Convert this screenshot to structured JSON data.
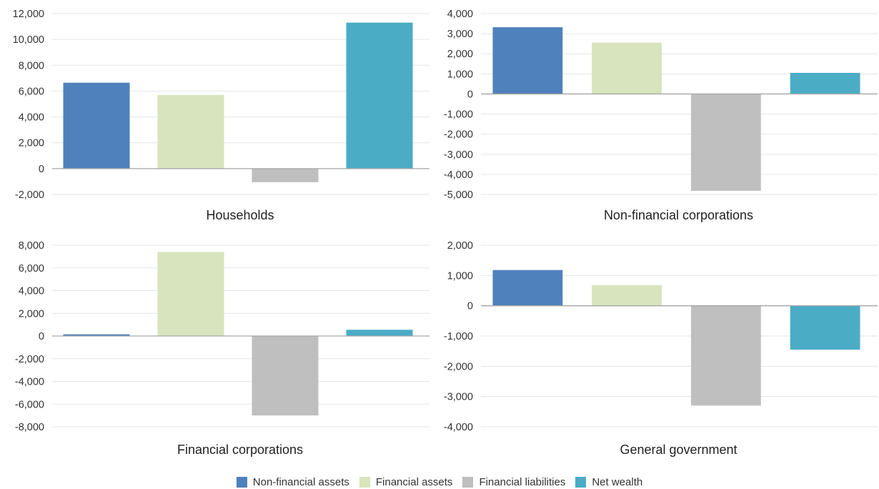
{
  "chart_data": [
    {
      "type": "bar",
      "title": "Households",
      "categories": [
        "Non-financial assets",
        "Financial assets",
        "Financial liabilities",
        "Net wealth"
      ],
      "values": [
        6650,
        5700,
        -1050,
        11300
      ],
      "ylim": [
        -2000,
        12000
      ],
      "yticks": [
        12000,
        10000,
        8000,
        6000,
        4000,
        2000,
        0,
        -2000
      ],
      "ytick_labels": [
        "12,000",
        "10,000",
        "8,000",
        "6,000",
        "4,000",
        "2,000",
        "0",
        "-2,000"
      ]
    },
    {
      "type": "bar",
      "title": "Non-financial corporations",
      "categories": [
        "Non-financial assets",
        "Financial assets",
        "Financial liabilities",
        "Net wealth"
      ],
      "values": [
        3320,
        2550,
        -4820,
        1050
      ],
      "ylim": [
        -5000,
        4000
      ],
      "yticks": [
        4000,
        3000,
        2000,
        1000,
        0,
        -1000,
        -2000,
        -3000,
        -4000,
        -5000
      ],
      "ytick_labels": [
        "4,000",
        "3,000",
        "2,000",
        "1,000",
        "0",
        "-1,000",
        "-2,000",
        "-3,000",
        "-4,000",
        "-5,000"
      ]
    },
    {
      "type": "bar",
      "title": "Financial corporations",
      "categories": [
        "Non-financial assets",
        "Financial assets",
        "Financial liabilities",
        "Net wealth"
      ],
      "values": [
        150,
        7400,
        -7000,
        550
      ],
      "ylim": [
        -8000,
        8000
      ],
      "yticks": [
        8000,
        6000,
        4000,
        2000,
        0,
        -2000,
        -4000,
        -6000,
        -8000
      ],
      "ytick_labels": [
        "8,000",
        "6,000",
        "4,000",
        "2,000",
        "0",
        "-2,000",
        "-4,000",
        "-6,000",
        "-8,000"
      ]
    },
    {
      "type": "bar",
      "title": "General government",
      "categories": [
        "Non-financial assets",
        "Financial assets",
        "Financial liabilities",
        "Net wealth"
      ],
      "values": [
        1180,
        680,
        -3300,
        -1450
      ],
      "ylim": [
        -4000,
        2000
      ],
      "yticks": [
        2000,
        1000,
        0,
        -1000,
        -2000,
        -3000,
        -4000
      ],
      "ytick_labels": [
        "2,000",
        "1,000",
        "0",
        "-1,000",
        "-2,000",
        "-3,000",
        "-4,000"
      ]
    }
  ],
  "legend": {
    "position": "bottom",
    "items": [
      {
        "label": "Non-financial assets",
        "color": "#4f81bd"
      },
      {
        "label": "Financial assets",
        "color": "#d7e4bd"
      },
      {
        "label": "Financial liabilities",
        "color": "#bfbfbf"
      },
      {
        "label": "Net wealth",
        "color": "#4bacc6"
      }
    ]
  },
  "colors": {
    "gridline": "#e6e6e6",
    "zero_line": "#a6a6a6",
    "text": "#333333"
  }
}
